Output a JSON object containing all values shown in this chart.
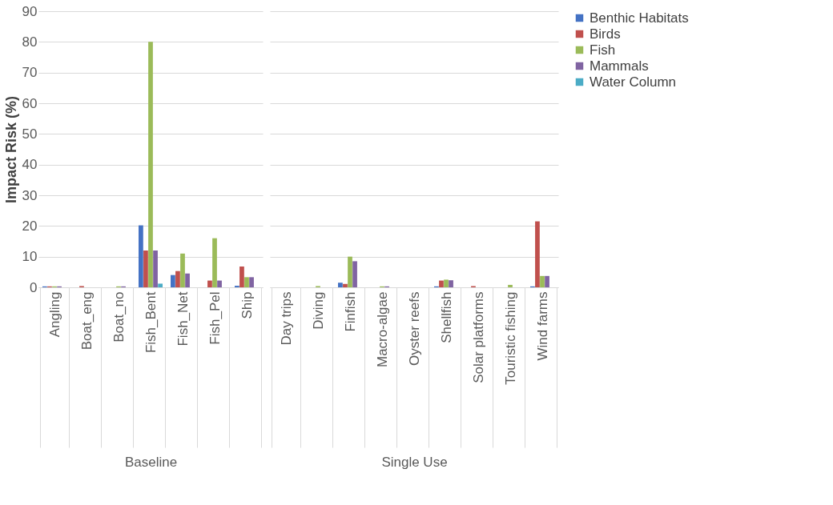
{
  "chart_data": [
    {
      "type": "bar",
      "xlabel": "Baseline",
      "ylabel": "Impact Risk (%)",
      "categories": [
        "Angling",
        "Boat_eng",
        "Boat_no",
        "Fish_Bent",
        "Fish_Net",
        "Fish_Pel",
        "Ship"
      ],
      "series": [
        {
          "name": "Benthic Habitats",
          "color": "#4472c4",
          "values": [
            0.3,
            0,
            0,
            20.2,
            4,
            0,
            0.5
          ]
        },
        {
          "name": "Birds",
          "color": "#c0504d",
          "values": [
            0.3,
            0.4,
            0,
            12,
            5.3,
            2.2,
            6.8
          ]
        },
        {
          "name": "Fish",
          "color": "#9bbb59",
          "values": [
            0.3,
            0,
            0.3,
            80,
            11,
            16,
            3.3
          ]
        },
        {
          "name": "Mammals",
          "color": "#8064a2",
          "values": [
            0.3,
            0,
            0.3,
            12,
            4.5,
            2.2,
            3.3
          ]
        },
        {
          "name": "Water Column",
          "color": "#4bacc6",
          "values": [
            0,
            0,
            0,
            1.2,
            0,
            0,
            0
          ]
        }
      ],
      "ylim": [
        0,
        90
      ],
      "yticks": [
        0,
        10,
        20,
        30,
        40,
        50,
        60,
        70,
        80,
        90
      ],
      "grid": "y",
      "legend": "right"
    },
    {
      "type": "bar",
      "xlabel": "Single Use",
      "categories": [
        "Day trips",
        "Diving",
        "Finfish",
        "Macro-algae",
        "Oyster reefs",
        "Shellfish",
        "Solar platforms",
        "Touristic fishing",
        "Wind farms"
      ],
      "series": [
        {
          "name": "Benthic Habitats",
          "color": "#4472c4",
          "values": [
            0,
            0,
            1.5,
            0,
            0,
            0.3,
            0,
            0,
            0.3
          ]
        },
        {
          "name": "Birds",
          "color": "#c0504d",
          "values": [
            0,
            0,
            1.1,
            0,
            0,
            2.2,
            0.4,
            0,
            21.5
          ]
        },
        {
          "name": "Fish",
          "color": "#9bbb59",
          "values": [
            0,
            0.4,
            10,
            0.3,
            0,
            2.5,
            0,
            0.8,
            3.7
          ]
        },
        {
          "name": "Mammals",
          "color": "#8064a2",
          "values": [
            0,
            0,
            8.5,
            0.3,
            0,
            2.3,
            0,
            0,
            3.7
          ]
        },
        {
          "name": "Water Column",
          "color": "#4bacc6",
          "values": [
            0,
            0,
            0,
            0,
            0,
            0,
            0,
            0,
            0
          ]
        }
      ],
      "ylim": [
        0,
        90
      ],
      "yticks": [
        0,
        10,
        20,
        30,
        40,
        50,
        60,
        70,
        80,
        90
      ],
      "grid": "y",
      "tick_labels": "x",
      "legend": "right"
    }
  ]
}
